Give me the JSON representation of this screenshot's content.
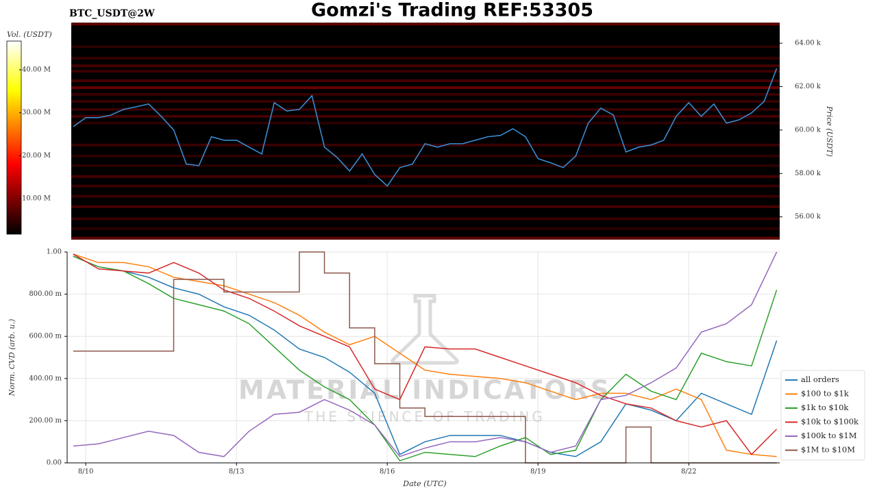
{
  "chart_data": [
    {
      "type": "heatmap",
      "title": "Gomzi's Trading REF:53305",
      "subtitle": "BTC_USDT@2W",
      "ylabel": "Price (USDT)",
      "xlim": [
        9.71,
        23.81
      ],
      "ylim": [
        54950,
        64950
      ],
      "yticks": [
        {
          "value": 56000,
          "label": "56.00 k"
        },
        {
          "value": 58000,
          "label": "58.00 k"
        },
        {
          "value": 60000,
          "label": "60.00 k"
        },
        {
          "value": 62000,
          "label": "62.00 k"
        },
        {
          "value": 64000,
          "label": "64.00 k"
        }
      ],
      "colorbar": {
        "label": "Vol. (USDT)",
        "lim": [
          1700000,
          46700000
        ],
        "ticks": [
          {
            "value": 10000000,
            "label": "10.00 M"
          },
          {
            "value": 20000000,
            "label": "20.00 M"
          },
          {
            "value": 30000000,
            "label": "30.00 M"
          },
          {
            "value": 40000000,
            "label": "40.00 M"
          }
        ]
      },
      "heatmap": {
        "levels": [
          64880,
          63840,
          63310,
          62960,
          62710,
          62270,
          61950,
          61640,
          61320,
          60950,
          60630,
          60320,
          59310,
          58800,
          58360,
          57860,
          57420,
          56950,
          56470,
          55910,
          55460,
          55020
        ],
        "volumes": [
          9000000,
          5000000,
          5500000,
          7000000,
          6000000,
          7000000,
          9500000,
          6000000,
          6000000,
          6000000,
          7000000,
          5000000,
          6000000,
          5000000,
          5000000,
          7000000,
          6000000,
          6000000,
          7000000,
          6000000,
          5000000,
          9000000
        ]
      },
      "x": [
        9.75,
        10.0,
        10.25,
        10.5,
        10.75,
        11.0,
        11.25,
        11.5,
        11.75,
        12.0,
        12.25,
        12.5,
        12.75,
        13.0,
        13.25,
        13.5,
        13.75,
        14.0,
        14.25,
        14.5,
        14.75,
        15.0,
        15.25,
        15.5,
        15.75,
        16.0,
        16.25,
        16.5,
        16.75,
        17.0,
        17.25,
        17.5,
        17.75,
        18.0,
        18.25,
        18.5,
        18.75,
        19.0,
        19.25,
        19.5,
        19.75,
        20.0,
        20.25,
        20.5,
        20.75,
        21.0,
        21.25,
        21.5,
        21.75,
        22.0,
        22.25,
        22.5,
        22.75,
        23.0,
        23.25,
        23.5,
        23.75
      ],
      "price": {
        "color": "#3a8bd0",
        "values": [
          60160,
          60570,
          60570,
          60690,
          60950,
          61070,
          61200,
          60630,
          60000,
          58430,
          58360,
          59690,
          59530,
          59530,
          59210,
          58900,
          61260,
          60880,
          60950,
          61580,
          59210,
          58740,
          58110,
          58900,
          57950,
          57420,
          58270,
          58430,
          59370,
          59210,
          59370,
          59370,
          59530,
          59690,
          59750,
          60060,
          59690,
          58680,
          58490,
          58270,
          58800,
          60320,
          61010,
          60690,
          58990,
          59210,
          59310,
          59530,
          60630,
          61260,
          60630,
          61200,
          60320,
          60470,
          60790,
          61320,
          62840
        ]
      }
    },
    {
      "type": "line",
      "xlabel": "Date (UTC)",
      "ylabel": "Norm. CVD (arb. u.)",
      "grid": true,
      "legend": "lower right",
      "watermark": [
        "MATERIAL INDICATORS",
        "THE SCIENCE OF TRADING"
      ],
      "xlim": [
        9.63,
        23.81
      ],
      "ylim": [
        0,
        1
      ],
      "xticks": [
        {
          "value": 10,
          "label": "8/10"
        },
        {
          "value": 13,
          "label": "8/13"
        },
        {
          "value": 16,
          "label": "8/16"
        },
        {
          "value": 19,
          "label": "8/19"
        },
        {
          "value": 22,
          "label": "8/22"
        }
      ],
      "yticks": [
        {
          "value": 0,
          "label": "0.00"
        },
        {
          "value": 0.2,
          "label": "200.00 m"
        },
        {
          "value": 0.4,
          "label": "400.00 m"
        },
        {
          "value": 0.6,
          "label": "600.00 m"
        },
        {
          "value": 0.8,
          "label": "800.00 m"
        },
        {
          "value": 1,
          "label": "1.00"
        }
      ],
      "x": [
        9.75,
        10.25,
        10.75,
        11.25,
        11.75,
        12.25,
        12.75,
        13.25,
        13.75,
        14.25,
        14.75,
        15.25,
        15.75,
        16.25,
        16.75,
        17.25,
        17.75,
        18.25,
        18.75,
        19.25,
        19.75,
        20.25,
        20.75,
        21.25,
        21.75,
        22.25,
        22.75,
        23.25,
        23.75
      ],
      "series": [
        {
          "name": "all orders",
          "color": "#1f77b4",
          "values": [
            0.98,
            0.93,
            0.91,
            0.88,
            0.83,
            0.8,
            0.74,
            0.7,
            0.63,
            0.54,
            0.5,
            0.43,
            0.33,
            0.04,
            0.1,
            0.13,
            0.13,
            0.13,
            0.1,
            0.05,
            0.03,
            0.1,
            0.28,
            0.25,
            0.2,
            0.33,
            0.28,
            0.23,
            0.58
          ]
        },
        {
          "name": "$100 to $1k",
          "color": "#ff7f0e",
          "values": [
            0.99,
            0.95,
            0.95,
            0.93,
            0.88,
            0.86,
            0.84,
            0.8,
            0.76,
            0.7,
            0.62,
            0.56,
            0.6,
            0.52,
            0.44,
            0.42,
            0.41,
            0.4,
            0.38,
            0.34,
            0.3,
            0.33,
            0.33,
            0.3,
            0.35,
            0.3,
            0.06,
            0.04,
            0.03
          ]
        },
        {
          "name": "$1k to $10k",
          "color": "#2ca02c",
          "values": [
            0.98,
            0.93,
            0.91,
            0.85,
            0.78,
            0.75,
            0.72,
            0.66,
            0.55,
            0.44,
            0.36,
            0.3,
            0.18,
            0.01,
            0.05,
            0.04,
            0.03,
            0.08,
            0.12,
            0.04,
            0.06,
            0.3,
            0.42,
            0.34,
            0.3,
            0.52,
            0.48,
            0.46,
            0.82
          ]
        },
        {
          "name": "$10k to $100k",
          "color": "#d62728",
          "values": [
            0.99,
            0.92,
            0.91,
            0.9,
            0.95,
            0.9,
            0.82,
            0.78,
            0.72,
            0.65,
            0.6,
            0.55,
            0.35,
            0.3,
            0.55,
            0.54,
            0.54,
            0.5,
            0.46,
            0.42,
            0.38,
            0.32,
            0.28,
            0.26,
            0.2,
            0.17,
            0.2,
            0.04,
            0.16
          ]
        },
        {
          "name": "$100k to $1M",
          "color": "#9467bd",
          "values": [
            0.08,
            0.09,
            0.12,
            0.15,
            0.13,
            0.05,
            0.03,
            0.15,
            0.23,
            0.24,
            0.3,
            0.25,
            0.18,
            0.03,
            0.07,
            0.1,
            0.1,
            0.12,
            0.1,
            0.05,
            0.08,
            0.3,
            0.32,
            0.38,
            0.45,
            0.62,
            0.66,
            0.75,
            1.0
          ]
        },
        {
          "name": "$1M to $10M",
          "color": "#8c564b",
          "drawstyle": "steps-post",
          "values": [
            0.53,
            0.53,
            0.53,
            0.53,
            0.87,
            0.87,
            0.81,
            0.81,
            0.81,
            1.0,
            0.9,
            0.64,
            0.47,
            0.26,
            0.22,
            0.22,
            0.22,
            0.22,
            0,
            0,
            0,
            0,
            0.17,
            0,
            0,
            0,
            0,
            0,
            0
          ]
        }
      ]
    }
  ]
}
